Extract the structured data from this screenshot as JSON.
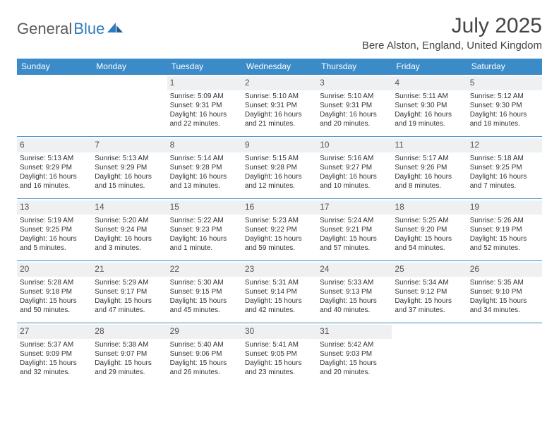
{
  "logo": {
    "part1": "General",
    "part2": "Blue"
  },
  "title": "July 2025",
  "location": "Bere Alston, England, United Kingdom",
  "colors": {
    "header_bg": "#3b8bc8",
    "header_text": "#ffffff",
    "daynum_bg": "#eef0f2",
    "border": "#3b8bc8",
    "logo_gray": "#5a5a5a",
    "logo_blue": "#2f7bbf"
  },
  "weekdays": [
    "Sunday",
    "Monday",
    "Tuesday",
    "Wednesday",
    "Thursday",
    "Friday",
    "Saturday"
  ],
  "grid": [
    [
      null,
      null,
      {
        "n": "1",
        "sr": "Sunrise: 5:09 AM",
        "ss": "Sunset: 9:31 PM",
        "dl": "Daylight: 16 hours and 22 minutes."
      },
      {
        "n": "2",
        "sr": "Sunrise: 5:10 AM",
        "ss": "Sunset: 9:31 PM",
        "dl": "Daylight: 16 hours and 21 minutes."
      },
      {
        "n": "3",
        "sr": "Sunrise: 5:10 AM",
        "ss": "Sunset: 9:31 PM",
        "dl": "Daylight: 16 hours and 20 minutes."
      },
      {
        "n": "4",
        "sr": "Sunrise: 5:11 AM",
        "ss": "Sunset: 9:30 PM",
        "dl": "Daylight: 16 hours and 19 minutes."
      },
      {
        "n": "5",
        "sr": "Sunrise: 5:12 AM",
        "ss": "Sunset: 9:30 PM",
        "dl": "Daylight: 16 hours and 18 minutes."
      }
    ],
    [
      {
        "n": "6",
        "sr": "Sunrise: 5:13 AM",
        "ss": "Sunset: 9:29 PM",
        "dl": "Daylight: 16 hours and 16 minutes."
      },
      {
        "n": "7",
        "sr": "Sunrise: 5:13 AM",
        "ss": "Sunset: 9:29 PM",
        "dl": "Daylight: 16 hours and 15 minutes."
      },
      {
        "n": "8",
        "sr": "Sunrise: 5:14 AM",
        "ss": "Sunset: 9:28 PM",
        "dl": "Daylight: 16 hours and 13 minutes."
      },
      {
        "n": "9",
        "sr": "Sunrise: 5:15 AM",
        "ss": "Sunset: 9:28 PM",
        "dl": "Daylight: 16 hours and 12 minutes."
      },
      {
        "n": "10",
        "sr": "Sunrise: 5:16 AM",
        "ss": "Sunset: 9:27 PM",
        "dl": "Daylight: 16 hours and 10 minutes."
      },
      {
        "n": "11",
        "sr": "Sunrise: 5:17 AM",
        "ss": "Sunset: 9:26 PM",
        "dl": "Daylight: 16 hours and 8 minutes."
      },
      {
        "n": "12",
        "sr": "Sunrise: 5:18 AM",
        "ss": "Sunset: 9:25 PM",
        "dl": "Daylight: 16 hours and 7 minutes."
      }
    ],
    [
      {
        "n": "13",
        "sr": "Sunrise: 5:19 AM",
        "ss": "Sunset: 9:25 PM",
        "dl": "Daylight: 16 hours and 5 minutes."
      },
      {
        "n": "14",
        "sr": "Sunrise: 5:20 AM",
        "ss": "Sunset: 9:24 PM",
        "dl": "Daylight: 16 hours and 3 minutes."
      },
      {
        "n": "15",
        "sr": "Sunrise: 5:22 AM",
        "ss": "Sunset: 9:23 PM",
        "dl": "Daylight: 16 hours and 1 minute."
      },
      {
        "n": "16",
        "sr": "Sunrise: 5:23 AM",
        "ss": "Sunset: 9:22 PM",
        "dl": "Daylight: 15 hours and 59 minutes."
      },
      {
        "n": "17",
        "sr": "Sunrise: 5:24 AM",
        "ss": "Sunset: 9:21 PM",
        "dl": "Daylight: 15 hours and 57 minutes."
      },
      {
        "n": "18",
        "sr": "Sunrise: 5:25 AM",
        "ss": "Sunset: 9:20 PM",
        "dl": "Daylight: 15 hours and 54 minutes."
      },
      {
        "n": "19",
        "sr": "Sunrise: 5:26 AM",
        "ss": "Sunset: 9:19 PM",
        "dl": "Daylight: 15 hours and 52 minutes."
      }
    ],
    [
      {
        "n": "20",
        "sr": "Sunrise: 5:28 AM",
        "ss": "Sunset: 9:18 PM",
        "dl": "Daylight: 15 hours and 50 minutes."
      },
      {
        "n": "21",
        "sr": "Sunrise: 5:29 AM",
        "ss": "Sunset: 9:17 PM",
        "dl": "Daylight: 15 hours and 47 minutes."
      },
      {
        "n": "22",
        "sr": "Sunrise: 5:30 AM",
        "ss": "Sunset: 9:15 PM",
        "dl": "Daylight: 15 hours and 45 minutes."
      },
      {
        "n": "23",
        "sr": "Sunrise: 5:31 AM",
        "ss": "Sunset: 9:14 PM",
        "dl": "Daylight: 15 hours and 42 minutes."
      },
      {
        "n": "24",
        "sr": "Sunrise: 5:33 AM",
        "ss": "Sunset: 9:13 PM",
        "dl": "Daylight: 15 hours and 40 minutes."
      },
      {
        "n": "25",
        "sr": "Sunrise: 5:34 AM",
        "ss": "Sunset: 9:12 PM",
        "dl": "Daylight: 15 hours and 37 minutes."
      },
      {
        "n": "26",
        "sr": "Sunrise: 5:35 AM",
        "ss": "Sunset: 9:10 PM",
        "dl": "Daylight: 15 hours and 34 minutes."
      }
    ],
    [
      {
        "n": "27",
        "sr": "Sunrise: 5:37 AM",
        "ss": "Sunset: 9:09 PM",
        "dl": "Daylight: 15 hours and 32 minutes."
      },
      {
        "n": "28",
        "sr": "Sunrise: 5:38 AM",
        "ss": "Sunset: 9:07 PM",
        "dl": "Daylight: 15 hours and 29 minutes."
      },
      {
        "n": "29",
        "sr": "Sunrise: 5:40 AM",
        "ss": "Sunset: 9:06 PM",
        "dl": "Daylight: 15 hours and 26 minutes."
      },
      {
        "n": "30",
        "sr": "Sunrise: 5:41 AM",
        "ss": "Sunset: 9:05 PM",
        "dl": "Daylight: 15 hours and 23 minutes."
      },
      {
        "n": "31",
        "sr": "Sunrise: 5:42 AM",
        "ss": "Sunset: 9:03 PM",
        "dl": "Daylight: 15 hours and 20 minutes."
      },
      null,
      null
    ]
  ]
}
